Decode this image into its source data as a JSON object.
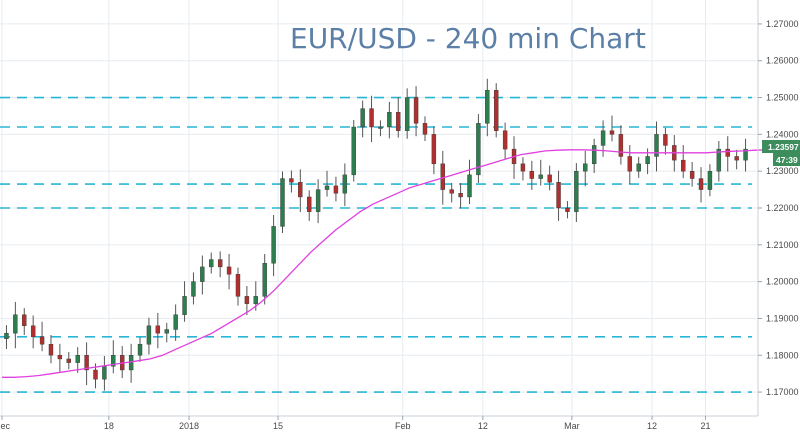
{
  "chart_data": {
    "type": "candlestick",
    "title": "EUR/USD - 240 min Chart",
    "ylim": [
      1.1635,
      1.2765
    ],
    "y_ticks": [
      "1.27000",
      "1.26000",
      "1.25000",
      "1.24000",
      "1.23000",
      "1.22000",
      "1.21000",
      "1.20000",
      "1.19000",
      "1.18000",
      "1.17000"
    ],
    "x_ticks": [
      "Dec",
      "18",
      "2018",
      "15",
      "Feb",
      "12",
      "Mar",
      "12",
      "21"
    ],
    "x_tick_positions": [
      0,
      12,
      21,
      31,
      45,
      54,
      64,
      73,
      79
    ],
    "x_range": [
      0,
      84
    ],
    "grid": true,
    "horizontal_levels": [
      1.25,
      1.242,
      1.2265,
      1.22,
      1.185,
      1.17
    ],
    "last_price": "1.23597",
    "countdown": "47:39",
    "series": [
      {
        "kind": "close",
        "values": [
          1.186,
          1.191,
          1.188,
          1.185,
          1.183,
          1.18,
          1.179,
          1.178,
          1.18,
          1.176,
          1.1735,
          1.177,
          1.18,
          1.176,
          1.18,
          1.183,
          1.188,
          1.186,
          1.187,
          1.191,
          1.196,
          1.2,
          1.204,
          1.206,
          1.204,
          1.202,
          1.196,
          1.194,
          1.196,
          1.205,
          1.215,
          1.228,
          1.227,
          1.223,
          1.219,
          1.225,
          1.226,
          1.224,
          1.229,
          1.242,
          1.247,
          1.242,
          1.242,
          1.246,
          1.241,
          1.25,
          1.243,
          1.24,
          1.232,
          1.225,
          1.224,
          1.223,
          1.229,
          1.243,
          1.252,
          1.241,
          1.236,
          1.232,
          1.23,
          1.228,
          1.229,
          1.227,
          1.22,
          1.219,
          1.23,
          1.232,
          1.237,
          1.241,
          1.24,
          1.234,
          1.23,
          1.232,
          1.234,
          1.24,
          1.237,
          1.233,
          1.23,
          1.228,
          1.225,
          1.23,
          1.236,
          1.234,
          1.233,
          1.236
        ]
      },
      {
        "kind": "moving-average",
        "values": [
          1.174,
          1.174,
          1.1742,
          1.1745,
          1.175,
          1.1755,
          1.176,
          1.1765,
          1.177,
          1.1775,
          1.178,
          1.1785,
          1.179,
          1.18,
          1.1815,
          1.183,
          1.1845,
          1.186,
          1.188,
          1.19,
          1.192,
          1.1945,
          1.1975,
          1.201,
          1.2045,
          1.208,
          1.211,
          1.214,
          1.2165,
          1.219,
          1.221,
          1.2225,
          1.224,
          1.2255,
          1.2265,
          1.2275,
          1.2285,
          1.2295,
          1.2305,
          1.2315,
          1.2325,
          1.2335,
          1.2345,
          1.235,
          1.2355,
          1.2357,
          1.2358,
          1.2358,
          1.2357,
          1.2355,
          1.2352,
          1.235,
          1.235,
          1.235,
          1.235,
          1.235,
          1.235,
          1.235,
          1.2352,
          1.2354,
          1.2355,
          1.2357,
          1.2358
        ]
      }
    ]
  },
  "colors": {
    "title": "#5b7fa6",
    "candle_up": "#2e7d4f",
    "candle_down": "#b03030",
    "wick": "#555555",
    "level_line": "#29b6d6",
    "moving_average": "#e040e0",
    "grid": "#e6ecf0",
    "badge_price": "#3d8c5c",
    "badge_time": "#3d8c5c"
  }
}
